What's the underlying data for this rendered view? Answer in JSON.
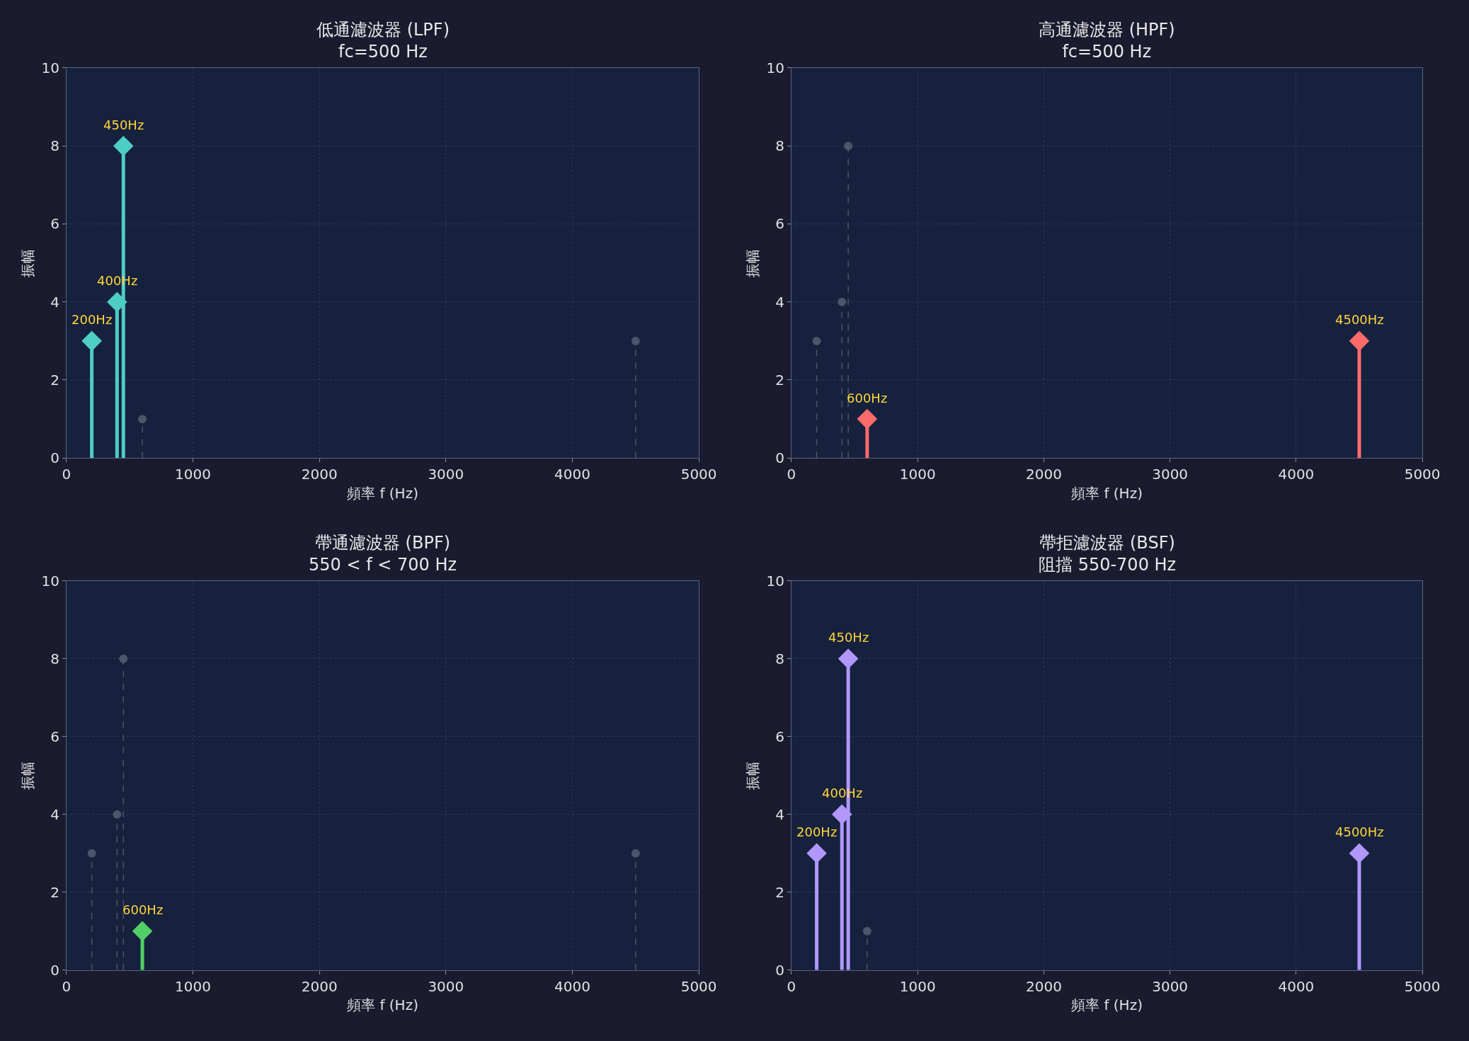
{
  "chart_data": [
    {
      "type": "lollipop",
      "title": "低通濾波器 (LPF)",
      "subtitle": "fc=500 Hz",
      "xlabel": "頻率 f (Hz)",
      "ylabel": "振幅",
      "xlim": [
        0,
        5000
      ],
      "xticks": [
        0,
        1000,
        2000,
        3000,
        4000,
        5000
      ],
      "ylim": [
        0,
        10
      ],
      "yticks": [
        0,
        2,
        4,
        6,
        8,
        10
      ],
      "grid": true,
      "series": [
        {
          "color": "#5a6275",
          "x": [
            600,
            4500
          ],
          "values": [
            1,
            3
          ],
          "marker": "circle",
          "line_style": "dashed"
        },
        {
          "color": "#4ecdc4",
          "x": [
            200,
            400,
            450
          ],
          "values": [
            3,
            4,
            8
          ],
          "marker": "diamond",
          "line_style": "solid"
        }
      ],
      "annotations": [
        {
          "text": "200Hz",
          "x": 200,
          "y": 3
        },
        {
          "text": "400Hz",
          "x": 400,
          "y": 4
        },
        {
          "text": "450Hz",
          "x": 450,
          "y": 8
        }
      ]
    },
    {
      "type": "lollipop",
      "title": "高通濾波器 (HPF)",
      "subtitle": "fc=500 Hz",
      "xlabel": "頻率 f (Hz)",
      "ylabel": "振幅",
      "xlim": [
        0,
        5000
      ],
      "xticks": [
        0,
        1000,
        2000,
        3000,
        4000,
        5000
      ],
      "ylim": [
        0,
        10
      ],
      "yticks": [
        0,
        2,
        4,
        6,
        8,
        10
      ],
      "grid": true,
      "series": [
        {
          "color": "#5a6275",
          "x": [
            200,
            400,
            450
          ],
          "values": [
            3,
            4,
            8
          ],
          "marker": "circle",
          "line_style": "dashed"
        },
        {
          "color": "#ff6b6b",
          "x": [
            600,
            4500
          ],
          "values": [
            1,
            3
          ],
          "marker": "diamond",
          "line_style": "solid"
        }
      ],
      "annotations": [
        {
          "text": "600Hz",
          "x": 600,
          "y": 1
        },
        {
          "text": "4500Hz",
          "x": 4500,
          "y": 3
        }
      ]
    },
    {
      "type": "lollipop",
      "title": "帶通濾波器 (BPF)",
      "subtitle": "550 < f < 700 Hz",
      "xlabel": "頻率 f (Hz)",
      "ylabel": "振幅",
      "xlim": [
        0,
        5000
      ],
      "xticks": [
        0,
        1000,
        2000,
        3000,
        4000,
        5000
      ],
      "ylim": [
        0,
        10
      ],
      "yticks": [
        0,
        2,
        4,
        6,
        8,
        10
      ],
      "grid": true,
      "series": [
        {
          "color": "#5a6275",
          "x": [
            200,
            400,
            450,
            4500
          ],
          "values": [
            3,
            4,
            8,
            3
          ],
          "marker": "circle",
          "line_style": "dashed"
        },
        {
          "color": "#51cf66",
          "x": [
            600
          ],
          "values": [
            1
          ],
          "marker": "diamond",
          "line_style": "solid"
        }
      ],
      "annotations": [
        {
          "text": "600Hz",
          "x": 600,
          "y": 1
        }
      ]
    },
    {
      "type": "lollipop",
      "title": "帶拒濾波器 (BSF)",
      "subtitle": "阻擋 550-700 Hz",
      "xlabel": "頻率 f (Hz)",
      "ylabel": "振幅",
      "xlim": [
        0,
        5000
      ],
      "xticks": [
        0,
        1000,
        2000,
        3000,
        4000,
        5000
      ],
      "ylim": [
        0,
        10
      ],
      "yticks": [
        0,
        2,
        4,
        6,
        8,
        10
      ],
      "grid": true,
      "series": [
        {
          "color": "#5a6275",
          "x": [
            600
          ],
          "values": [
            1
          ],
          "marker": "circle",
          "line_style": "dashed"
        },
        {
          "color": "#b197fc",
          "x": [
            200,
            400,
            450,
            4500
          ],
          "values": [
            3,
            4,
            8,
            3
          ],
          "marker": "diamond",
          "line_style": "solid"
        }
      ],
      "annotations": [
        {
          "text": "200Hz",
          "x": 200,
          "y": 3
        },
        {
          "text": "400Hz",
          "x": 400,
          "y": 4
        },
        {
          "text": "450Hz",
          "x": 450,
          "y": 8
        },
        {
          "text": "4500Hz",
          "x": 4500,
          "y": 3
        }
      ]
    }
  ]
}
